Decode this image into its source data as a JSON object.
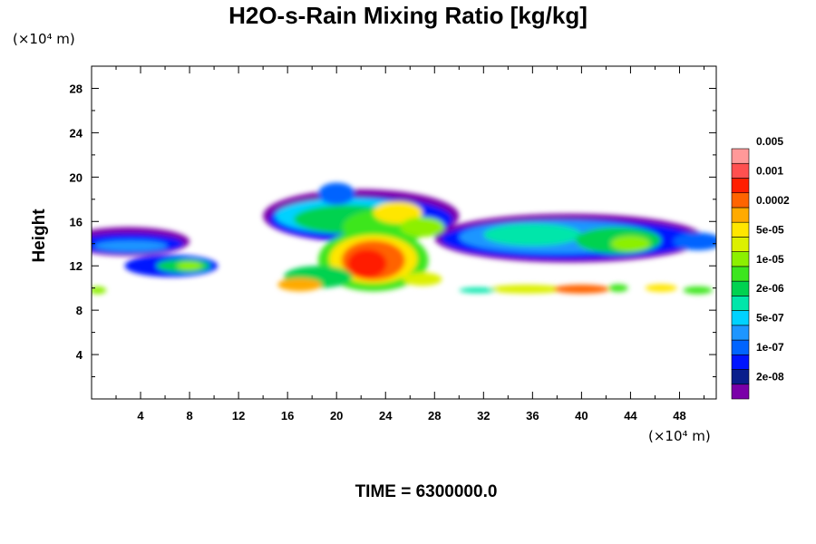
{
  "chart_data": {
    "type": "heatmap",
    "title": "H2O-s-Rain Mixing Ratio [kg/kg]",
    "ylabel": "Height",
    "y_unit": "(×10⁴ m)",
    "x_unit": "(×10⁴ m)",
    "footer": "TIME = 6300000.0",
    "xlim": [
      0,
      51
    ],
    "ylim": [
      0,
      30
    ],
    "x_ticks": [
      4,
      8,
      12,
      16,
      20,
      24,
      28,
      32,
      36,
      40,
      44,
      48
    ],
    "y_ticks": [
      4,
      8,
      12,
      16,
      20,
      24,
      28
    ],
    "colorbar": {
      "colors": [
        "#7a00a8",
        "#0a1e8c",
        "#0014ff",
        "#0064ff",
        "#1e96ff",
        "#00d2ff",
        "#00e6aa",
        "#00d250",
        "#3ce61e",
        "#8cf000",
        "#dcf000",
        "#ffe600",
        "#ffaa00",
        "#ff6400",
        "#ff1e00",
        "#ff5050",
        "#ff9999"
      ],
      "labels": [
        "2e-08",
        "1e-07",
        "5e-07",
        "2e-06",
        "1e-05",
        "5e-05",
        "0.0002",
        "0.001",
        "0.005"
      ]
    }
  }
}
